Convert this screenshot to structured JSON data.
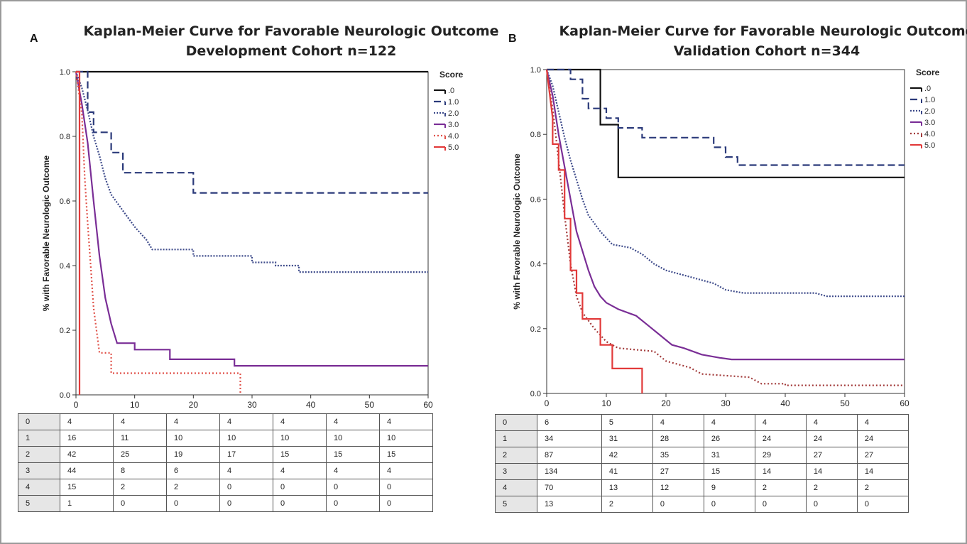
{
  "chart_data": [
    {
      "type": "line",
      "panel": "A",
      "title": "Kaplan-Meier Curve for Favorable Neurologic Outcome",
      "subtitle": "Development Cohort n=122",
      "ylabel": "% with Favorable Neurologic Outcome",
      "xlabel": "",
      "xlim": [
        0,
        60
      ],
      "ylim": [
        0,
        1.0
      ],
      "xticks": [
        "0",
        "10",
        "20",
        "30",
        "40",
        "50",
        "60"
      ],
      "yticks": [
        "0.0",
        "0.2",
        "0.4",
        "0.6",
        "0.8",
        "1.0"
      ],
      "legend_title": "Score",
      "legend_position": "top-right",
      "series": [
        {
          "name": ".0",
          "color": "#111111",
          "dash": "",
          "points": [
            [
              0,
              1.0
            ],
            [
              60,
              1.0
            ]
          ]
        },
        {
          "name": "1.0",
          "color": "#2b3a7a",
          "dash": "10,5",
          "points": [
            [
              0,
              1.0
            ],
            [
              2,
              1.0
            ],
            [
              2,
              0.875
            ],
            [
              3,
              0.875
            ],
            [
              3,
              0.8125
            ],
            [
              6,
              0.8125
            ],
            [
              6,
              0.75
            ],
            [
              8,
              0.75
            ],
            [
              8,
              0.6875
            ],
            [
              20,
              0.6875
            ],
            [
              20,
              0.625
            ],
            [
              60,
              0.625
            ]
          ]
        },
        {
          "name": "2.0",
          "color": "#3d4a8a",
          "dash": "2,2",
          "points": [
            [
              0,
              1.0
            ],
            [
              1,
              0.95
            ],
            [
              2,
              0.88
            ],
            [
              3,
              0.8
            ],
            [
              4,
              0.74
            ],
            [
              5,
              0.67
            ],
            [
              6,
              0.62
            ],
            [
              8,
              0.57
            ],
            [
              10,
              0.52
            ],
            [
              12,
              0.48
            ],
            [
              13,
              0.45
            ],
            [
              20,
              0.45
            ],
            [
              20,
              0.43
            ],
            [
              30,
              0.43
            ],
            [
              30,
              0.41
            ],
            [
              34,
              0.41
            ],
            [
              34,
              0.4
            ],
            [
              38,
              0.4
            ],
            [
              38,
              0.38
            ],
            [
              60,
              0.38
            ]
          ]
        },
        {
          "name": "3.0",
          "color": "#7a2e96",
          "dash": "",
          "points": [
            [
              0,
              1.0
            ],
            [
              1,
              0.9
            ],
            [
              2,
              0.78
            ],
            [
              3,
              0.6
            ],
            [
              4,
              0.43
            ],
            [
              5,
              0.3
            ],
            [
              6,
              0.22
            ],
            [
              7,
              0.16
            ],
            [
              10,
              0.16
            ],
            [
              10,
              0.14
            ],
            [
              16,
              0.14
            ],
            [
              16,
              0.11
            ],
            [
              27,
              0.11
            ],
            [
              27,
              0.09
            ],
            [
              60,
              0.09
            ]
          ]
        },
        {
          "name": "4.0",
          "color": "#e0524a",
          "dash": "2,3",
          "points": [
            [
              0,
              1.0
            ],
            [
              1,
              0.87
            ],
            [
              1.5,
              0.67
            ],
            [
              2,
              0.53
            ],
            [
              2.5,
              0.4
            ],
            [
              3,
              0.27
            ],
            [
              3.5,
              0.2
            ],
            [
              4,
              0.13
            ],
            [
              6,
              0.13
            ],
            [
              6,
              0.067
            ],
            [
              28,
              0.067
            ],
            [
              28,
              0.0
            ]
          ]
        },
        {
          "name": "5.0",
          "color": "#e23a3a",
          "dash": "",
          "points": [
            [
              0,
              1.0
            ],
            [
              0.6,
              1.0
            ],
            [
              0.6,
              0.0
            ]
          ]
        }
      ],
      "risk_table": [
        [
          "0",
          "4",
          "4",
          "4",
          "4",
          "4",
          "4",
          "4"
        ],
        [
          "1",
          "16",
          "11",
          "10",
          "10",
          "10",
          "10",
          "10"
        ],
        [
          "2",
          "42",
          "25",
          "19",
          "17",
          "15",
          "15",
          "15"
        ],
        [
          "3",
          "44",
          "8",
          "6",
          "4",
          "4",
          "4",
          "4"
        ],
        [
          "4",
          "15",
          "2",
          "2",
          "0",
          "0",
          "0",
          "0"
        ],
        [
          "5",
          "1",
          "0",
          "0",
          "0",
          "0",
          "0",
          "0"
        ]
      ]
    },
    {
      "type": "line",
      "panel": "B",
      "title": "Kaplan-Meier Curve for Favorable Neurologic Outcome",
      "subtitle": "Validation Cohort n=344",
      "ylabel": "% with Favorable Neurologic Outcome",
      "xlabel": "",
      "xlim": [
        0,
        60
      ],
      "ylim": [
        0,
        1.0
      ],
      "xticks": [
        "0",
        "10",
        "20",
        "30",
        "40",
        "50",
        "60"
      ],
      "yticks": [
        "0.0",
        "0.2",
        "0.4",
        "0.6",
        "0.8",
        "1.0"
      ],
      "legend_title": "Score",
      "legend_position": "top-right",
      "series": [
        {
          "name": ".0",
          "color": "#111111",
          "dash": "",
          "points": [
            [
              0,
              1.0
            ],
            [
              9,
              1.0
            ],
            [
              9,
              0.83
            ],
            [
              12,
              0.83
            ],
            [
              12,
              0.667
            ],
            [
              60,
              0.667
            ]
          ]
        },
        {
          "name": "1.0",
          "color": "#2b3a7a",
          "dash": "10,5",
          "points": [
            [
              0,
              1.0
            ],
            [
              4,
              1.0
            ],
            [
              4,
              0.97
            ],
            [
              6,
              0.97
            ],
            [
              6,
              0.91
            ],
            [
              7,
              0.91
            ],
            [
              7,
              0.88
            ],
            [
              10,
              0.88
            ],
            [
              10,
              0.85
            ],
            [
              12,
              0.85
            ],
            [
              12,
              0.82
            ],
            [
              16,
              0.82
            ],
            [
              16,
              0.79
            ],
            [
              28,
              0.79
            ],
            [
              28,
              0.76
            ],
            [
              30,
              0.76
            ],
            [
              30,
              0.73
            ],
            [
              32,
              0.73
            ],
            [
              32,
              0.705
            ],
            [
              60,
              0.705
            ]
          ]
        },
        {
          "name": "2.0",
          "color": "#3d4a8a",
          "dash": "2,2",
          "points": [
            [
              0,
              1.0
            ],
            [
              1,
              0.95
            ],
            [
              2,
              0.87
            ],
            [
              3,
              0.79
            ],
            [
              4,
              0.72
            ],
            [
              5,
              0.66
            ],
            [
              6,
              0.6
            ],
            [
              7,
              0.55
            ],
            [
              9,
              0.5
            ],
            [
              11,
              0.46
            ],
            [
              14,
              0.45
            ],
            [
              16,
              0.43
            ],
            [
              18,
              0.4
            ],
            [
              20,
              0.38
            ],
            [
              24,
              0.36
            ],
            [
              28,
              0.34
            ],
            [
              30,
              0.32
            ],
            [
              33,
              0.31
            ],
            [
              45,
              0.31
            ],
            [
              47,
              0.3
            ],
            [
              60,
              0.3
            ]
          ]
        },
        {
          "name": "3.0",
          "color": "#7a2e96",
          "dash": "",
          "points": [
            [
              0,
              1.0
            ],
            [
              1,
              0.92
            ],
            [
              2,
              0.8
            ],
            [
              3,
              0.7
            ],
            [
              4,
              0.6
            ],
            [
              5,
              0.5
            ],
            [
              6,
              0.44
            ],
            [
              7,
              0.38
            ],
            [
              8,
              0.33
            ],
            [
              9,
              0.3
            ],
            [
              10,
              0.28
            ],
            [
              12,
              0.26
            ],
            [
              15,
              0.24
            ],
            [
              17,
              0.21
            ],
            [
              19,
              0.18
            ],
            [
              21,
              0.15
            ],
            [
              23,
              0.14
            ],
            [
              26,
              0.12
            ],
            [
              29,
              0.11
            ],
            [
              31,
              0.105
            ],
            [
              60,
              0.105
            ]
          ]
        },
        {
          "name": "4.0",
          "color": "#a23a3a",
          "dash": "2,3",
          "points": [
            [
              0,
              1.0
            ],
            [
              1,
              0.88
            ],
            [
              2,
              0.72
            ],
            [
              3,
              0.55
            ],
            [
              4,
              0.4
            ],
            [
              5,
              0.3
            ],
            [
              6,
              0.25
            ],
            [
              8,
              0.2
            ],
            [
              10,
              0.16
            ],
            [
              12,
              0.14
            ],
            [
              18,
              0.13
            ],
            [
              20,
              0.1
            ],
            [
              24,
              0.08
            ],
            [
              26,
              0.06
            ],
            [
              30,
              0.055
            ],
            [
              34,
              0.05
            ],
            [
              36,
              0.03
            ],
            [
              40,
              0.03
            ],
            [
              40,
              0.025
            ],
            [
              60,
              0.025
            ]
          ]
        },
        {
          "name": "5.0",
          "color": "#e23a3a",
          "dash": "",
          "points": [
            [
              0,
              1.0
            ],
            [
              1,
              0.85
            ],
            [
              1,
              0.77
            ],
            [
              2,
              0.77
            ],
            [
              2,
              0.69
            ],
            [
              3,
              0.69
            ],
            [
              3,
              0.54
            ],
            [
              4,
              0.54
            ],
            [
              4,
              0.38
            ],
            [
              5,
              0.38
            ],
            [
              5,
              0.31
            ],
            [
              6,
              0.31
            ],
            [
              6,
              0.23
            ],
            [
              9,
              0.23
            ],
            [
              9,
              0.15
            ],
            [
              11,
              0.15
            ],
            [
              11,
              0.077
            ],
            [
              16,
              0.077
            ],
            [
              16,
              0.0
            ]
          ]
        }
      ],
      "risk_table": [
        [
          "0",
          "6",
          "5",
          "4",
          "4",
          "4",
          "4",
          "4"
        ],
        [
          "1",
          "34",
          "31",
          "28",
          "26",
          "24",
          "24",
          "24"
        ],
        [
          "2",
          "87",
          "42",
          "35",
          "31",
          "29",
          "27",
          "27"
        ],
        [
          "3",
          "134",
          "41",
          "27",
          "15",
          "14",
          "14",
          "14"
        ],
        [
          "4",
          "70",
          "13",
          "12",
          "9",
          "2",
          "2",
          "2"
        ],
        [
          "5",
          "13",
          "2",
          "0",
          "0",
          "0",
          "0",
          "0"
        ]
      ]
    }
  ]
}
